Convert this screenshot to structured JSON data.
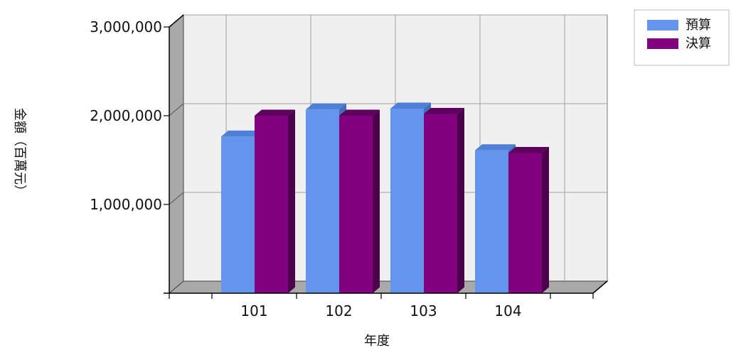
{
  "chart_data": {
    "type": "bar",
    "categories": [
      "101",
      "102",
      "103",
      "104"
    ],
    "series": [
      {
        "name": "預算",
        "values": [
          1765000,
          2070000,
          2080000,
          1610000
        ]
      },
      {
        "name": "決算",
        "values": [
          2000000,
          2000000,
          2020000,
          1580000
        ]
      }
    ],
    "title": "",
    "xlabel": "年度",
    "ylabel": "金額（百萬元）",
    "ylim": [
      0,
      3000000
    ],
    "yticks": [
      "1,000,000",
      "2,000,000",
      "3,000,000"
    ],
    "grid": true,
    "legend_position": "top-right",
    "colors": {
      "budget_front": "#6495ED",
      "budget_side": "#3F6FB8",
      "budget_top": "#4F7FD6",
      "final_front": "#800080",
      "final_side": "#4C004C",
      "final_top": "#5E005E",
      "plot_bg": "#F0F0F0",
      "wall": "#A9A9A9",
      "grid": "#A0A0A0"
    }
  }
}
